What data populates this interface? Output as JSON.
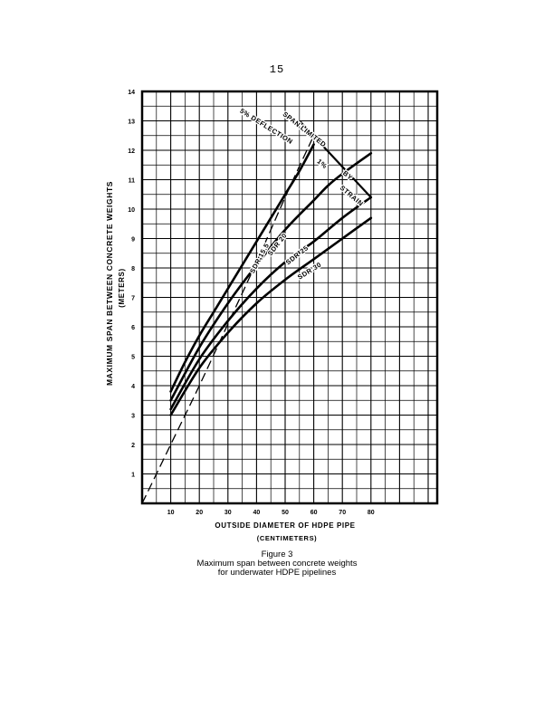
{
  "page_number": "15",
  "figure": {
    "label": "Figure 3",
    "caption_line1": "Maximum span between concrete weights",
    "caption_line2": "for underwater HDPE pipelines"
  },
  "chart_data": {
    "type": "line",
    "title": "",
    "xlabel": "OUTSIDE DIAMETER OF HDPE PIPE",
    "xlabel_units": "(CENTIMETERS)",
    "ylabel": "MAXIMUM SPAN BETWEEN CONCRETE WEIGHTS",
    "ylabel_units": "(METERS)",
    "xlim": [
      0,
      100
    ],
    "ylim": [
      0,
      15
    ],
    "x_ticks": [
      10,
      20,
      30,
      40,
      50,
      60,
      70,
      80
    ],
    "y_ticks": [
      1,
      2,
      3,
      4,
      5,
      6,
      7,
      8,
      9,
      10,
      11,
      12,
      13,
      14
    ],
    "grid": true,
    "series": [
      {
        "name": "SDR 15.5",
        "x": [
          10,
          15,
          20,
          25,
          30,
          35,
          40,
          45,
          50,
          55,
          60
        ],
        "y": [
          3.8,
          4.8,
          5.7,
          6.5,
          7.3,
          8.1,
          8.9,
          9.7,
          10.5,
          11.3,
          12.2
        ]
      },
      {
        "name": "SDR 20",
        "x": [
          10,
          20,
          30,
          40,
          50,
          60,
          65,
          70,
          80
        ],
        "y": [
          3.5,
          5.3,
          6.8,
          8.1,
          9.3,
          10.3,
          10.8,
          11.2,
          11.9
        ]
      },
      {
        "name": "SDR 25",
        "x": [
          10,
          20,
          30,
          40,
          50,
          60,
          70,
          80
        ],
        "y": [
          3.2,
          4.9,
          6.2,
          7.3,
          8.2,
          8.9,
          9.7,
          10.4
        ]
      },
      {
        "name": "SDR 30",
        "x": [
          10,
          20,
          30,
          40,
          50,
          60,
          70,
          80
        ],
        "y": [
          3.0,
          4.6,
          5.8,
          6.8,
          7.6,
          8.3,
          9.0,
          9.7
        ]
      }
    ],
    "limit_lines": [
      {
        "label": "5% DEFLECTION",
        "style": "dashed",
        "x": [
          0,
          10,
          20,
          30,
          40,
          50,
          60
        ],
        "y": [
          0,
          2.0,
          4.0,
          6.1,
          8.2,
          10.4,
          12.5
        ]
      },
      {
        "label": "SPAN LIMITED BY 1% STRAIN",
        "style": "solid",
        "x": [
          55,
          80
        ],
        "y": [
          13.0,
          10.4
        ]
      }
    ],
    "annotations": {
      "deflection_label": "5% DEFLECTION",
      "strain_label_1": "SPAN LIMITED",
      "strain_label_2": "BY",
      "strain_label_3": "1%",
      "strain_label_4": "STRAIN"
    }
  }
}
